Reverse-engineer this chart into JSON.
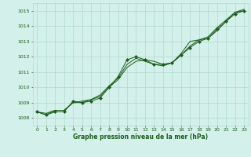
{
  "bg_color": "#d4f0eb",
  "grid_color": "#b0d8cc",
  "line_color": "#1a5c1a",
  "marker_color": "#1a5c1a",
  "xlabel": "Graphe pression niveau de la mer (hPa)",
  "xlim": [
    -0.5,
    23.5
  ],
  "ylim": [
    1007.5,
    1015.5
  ],
  "yticks": [
    1008,
    1009,
    1010,
    1011,
    1012,
    1013,
    1014,
    1015
  ],
  "xticks": [
    0,
    1,
    2,
    3,
    4,
    5,
    6,
    7,
    8,
    9,
    10,
    11,
    12,
    13,
    14,
    15,
    16,
    17,
    18,
    19,
    20,
    21,
    22,
    23
  ],
  "series": [
    [
      1008.4,
      1008.2,
      1008.4,
      1008.4,
      1009.1,
      1009.0,
      1009.1,
      1009.3,
      1010.0,
      1010.7,
      1011.8,
      1012.0,
      1011.8,
      1011.5,
      1011.5,
      1011.6,
      1012.1,
      1012.6,
      1013.0,
      1013.2,
      1013.8,
      1014.3,
      1014.8,
      1015.0
    ],
    [
      1008.4,
      1008.2,
      1008.5,
      1008.5,
      1009.0,
      1009.0,
      1009.2,
      1009.4,
      1010.0,
      1010.5,
      1011.3,
      1011.7,
      1011.8,
      1011.7,
      1011.5,
      1011.6,
      1012.2,
      1013.0,
      1013.1,
      1013.3,
      1013.9,
      1014.4,
      1014.9,
      1015.1
    ],
    [
      1008.4,
      1008.3,
      1008.5,
      1008.5,
      1009.0,
      1009.1,
      1009.2,
      1009.5,
      1010.1,
      1010.6,
      1011.5,
      1011.9,
      1011.7,
      1011.5,
      1011.4,
      1011.6,
      1012.1,
      1012.7,
      1013.1,
      1013.2,
      1013.7,
      1014.3,
      1014.9,
      1015.0
    ]
  ]
}
